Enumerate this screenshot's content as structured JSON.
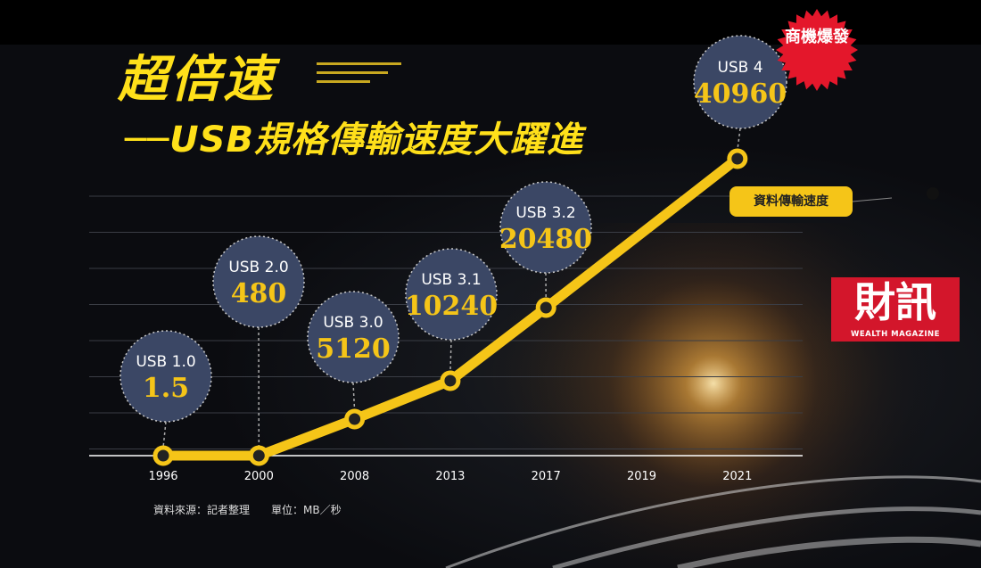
{
  "title": "超倍速",
  "subtitle": "──USB規格傳輸速度大躍進",
  "badge": "商機爆發",
  "legend_label": "資料傳輸速度",
  "source_note": "資料來源：記者整理　　單位：MB／秒",
  "logo": {
    "chars": "財訊",
    "subtitle": "WEALTH MAGAZINE"
  },
  "colors": {
    "accent": "#f5c518",
    "bubble": "#3b4765",
    "badge": "#e4172b",
    "logo": "#d3162b"
  },
  "chart_data": {
    "type": "line",
    "x": [
      "1996",
      "2000",
      "2008",
      "2013",
      "2017",
      "2019",
      "2021"
    ],
    "series": [
      {
        "name": "資料傳輸速度",
        "points": [
          {
            "x": "1996",
            "y": 1.5,
            "label": "USB 1.0",
            "value_label": "1.5"
          },
          {
            "x": "2000",
            "y": 480,
            "label": "USB 2.0",
            "value_label": "480"
          },
          {
            "x": "2008",
            "y": 5120,
            "label": "USB 3.0",
            "value_label": "5120"
          },
          {
            "x": "2013",
            "y": 10240,
            "label": "USB 3.1",
            "value_label": "10240"
          },
          {
            "x": "2017",
            "y": 20480,
            "label": "USB 3.2",
            "value_label": "20480"
          },
          {
            "x": "2021",
            "y": 40960,
            "label": "USB 4",
            "value_label": "40960"
          }
        ]
      }
    ],
    "unit": "MB／秒",
    "grid": true,
    "legend_position": "right"
  }
}
